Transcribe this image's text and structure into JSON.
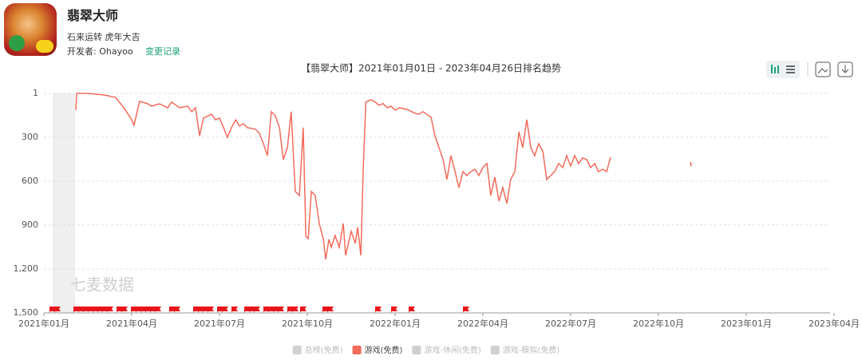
{
  "header": {
    "app_name": "翡翠大师",
    "subtitle": "石来运转 虎年大吉",
    "developer": "开发者: Ohayoo",
    "change_log": "变更记录"
  },
  "chart_data": {
    "type": "line",
    "title": "【翡翠大师】2021年01月01日 - 2023年04月26日排名趋势",
    "watermark": "七麦数据",
    "x": [
      1.09,
      1.12,
      1.5,
      2.05,
      2.45,
      2.73,
      3.0,
      3.08,
      3.27,
      3.55,
      3.68,
      3.95,
      4.23,
      4.36,
      4.64,
      4.91,
      5.05,
      5.18,
      5.32,
      5.45,
      5.73,
      5.86,
      6.0,
      6.14,
      6.27,
      6.41,
      6.55,
      6.68,
      6.82,
      6.95,
      7.23,
      7.36,
      7.5,
      7.64,
      7.77,
      7.91,
      8.05,
      8.18,
      8.32,
      8.45,
      8.59,
      8.73,
      8.86,
      8.95,
      9.03,
      9.14,
      9.27,
      9.41,
      9.55,
      9.63,
      9.74,
      9.82,
      9.95,
      10.09,
      10.23,
      10.31,
      10.5,
      10.64,
      10.72,
      10.83,
      10.91,
      11.0,
      11.18,
      11.32,
      11.45,
      11.59,
      11.73,
      11.86,
      12.0,
      12.14,
      12.41,
      12.68,
      12.82,
      12.95,
      13.23,
      13.36,
      13.5,
      13.64,
      13.77,
      13.91,
      14.05,
      14.18,
      14.32,
      14.45,
      14.59,
      14.73,
      14.86,
      15.0,
      15.14,
      15.27,
      15.41,
      15.55,
      15.68,
      15.82,
      15.95,
      16.09,
      16.23,
      16.36,
      16.5,
      16.64,
      16.77,
      16.91,
      17.05,
      17.18,
      17.32,
      17.45,
      17.59,
      17.73,
      17.86,
      18.0,
      18.14,
      18.27,
      18.41,
      18.55,
      18.68,
      18.82,
      18.95,
      19.09,
      19.23,
      19.36,
      19.4,
      22.09,
      22.12
    ],
    "series": [
      {
        "name": "总榜(免费)",
        "color": "#d0d0d0",
        "visible": false
      },
      {
        "name": "游戏(免费)",
        "color": "#f26b5b",
        "visible": true,
        "values": [
          115,
          1,
          1,
          12,
          28,
          99,
          181,
          219,
          55,
          72,
          88,
          72,
          99,
          61,
          99,
          88,
          126,
          99,
          290,
          170,
          143,
          181,
          170,
          235,
          301,
          235,
          181,
          224,
          208,
          235,
          246,
          273,
          344,
          426,
          126,
          154,
          235,
          453,
          371,
          126,
          671,
          698,
          235,
          977,
          993,
          671,
          698,
          889,
          998,
          1134,
          998,
          1052,
          971,
          1052,
          889,
          1107,
          943,
          1025,
          916,
          1107,
          535,
          60,
          44,
          60,
          82,
          71,
          99,
          88,
          115,
          99,
          110,
          137,
          143,
          126,
          164,
          290,
          371,
          453,
          589,
          426,
          535,
          644,
          535,
          562,
          535,
          519,
          562,
          508,
          480,
          698,
          573,
          737,
          644,
          753,
          589,
          535,
          263,
          372,
          181,
          372,
          426,
          344,
          399,
          589,
          562,
          535,
          480,
          508,
          426,
          497,
          426,
          480,
          442,
          453,
          508,
          480,
          535,
          519,
          535,
          437,
          null,
          470,
          500
        ]
      },
      {
        "name": "游戏-休闲(免费)",
        "color": "#d0d0d0",
        "visible": false
      },
      {
        "name": "游戏-模拟(免费)",
        "color": "#d0d0d0",
        "visible": false
      }
    ],
    "xlim": [
      0,
      27
    ],
    "xticks": [
      {
        "value": 0,
        "label": "2021年01月"
      },
      {
        "value": 3,
        "label": "2021年04月"
      },
      {
        "value": 6,
        "label": "2021年07月"
      },
      {
        "value": 9,
        "label": "2021年10月"
      },
      {
        "value": 12,
        "label": "2022年01月"
      },
      {
        "value": 15,
        "label": "2022年04月"
      },
      {
        "value": 18,
        "label": "2022年07月"
      },
      {
        "value": 21,
        "label": "2022年10月"
      },
      {
        "value": 24,
        "label": "2023年01月"
      },
      {
        "value": 27,
        "label": "2023年04月"
      }
    ],
    "ylim": [
      1500,
      1
    ],
    "yticks": [
      1,
      300,
      600,
      900,
      {
        "value": 1200,
        "label": "1,200"
      },
      {
        "value": 1500,
        "label": "1,500"
      }
    ],
    "grid": true
  }
}
